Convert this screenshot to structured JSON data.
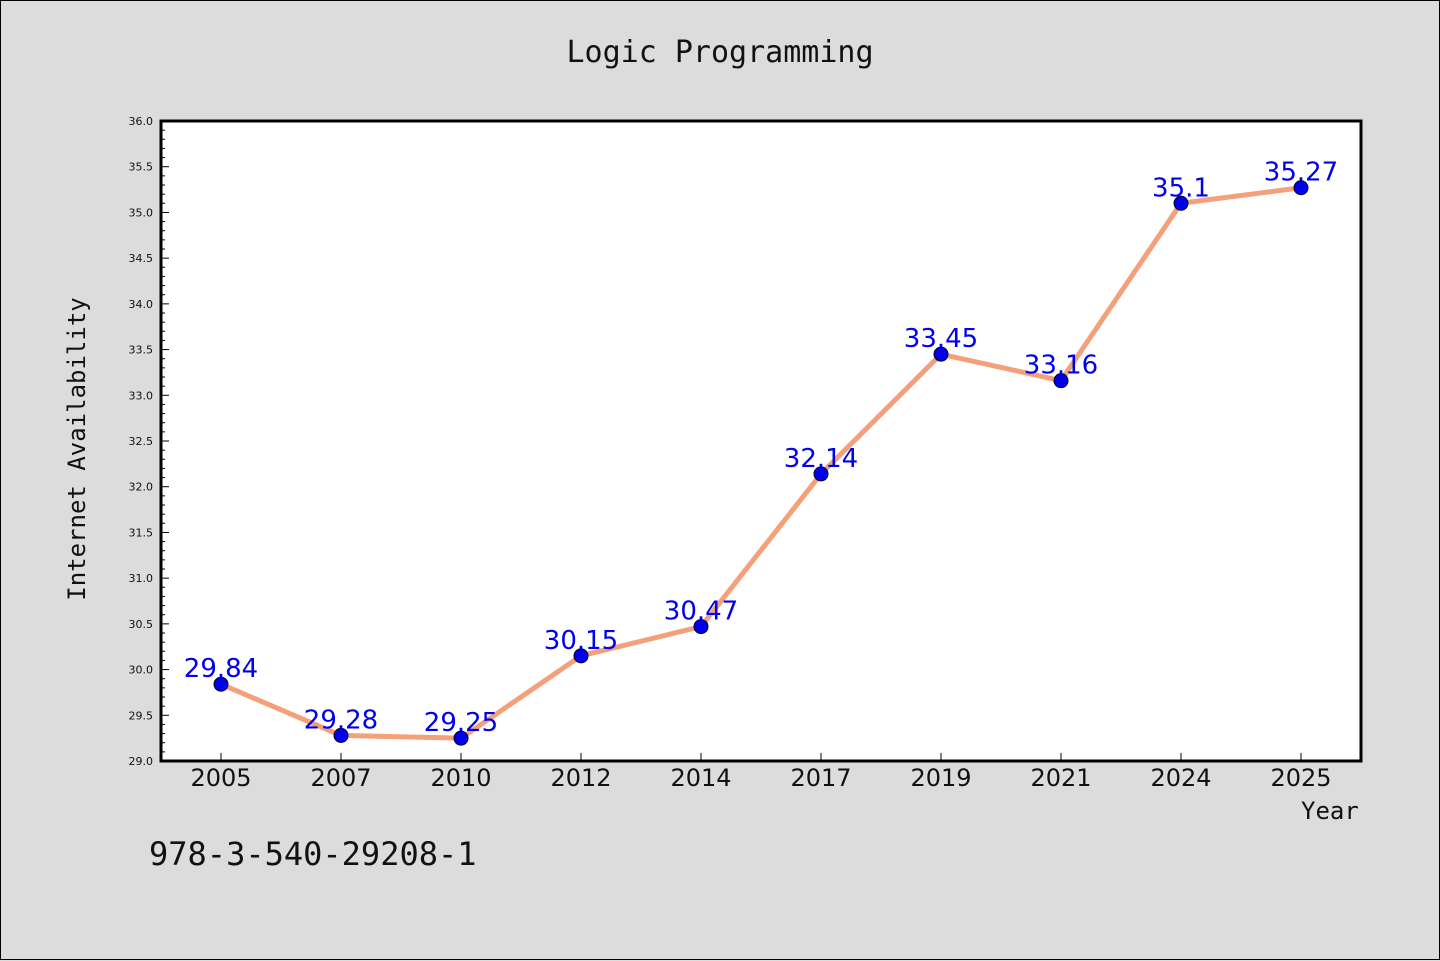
{
  "chart_data": {
    "type": "line",
    "title": "Logic Programming",
    "xlabel": "Year",
    "ylabel": "Internet Availability",
    "categories": [
      "2005",
      "2007",
      "2010",
      "2012",
      "2014",
      "2017",
      "2019",
      "2021",
      "2024",
      "2025"
    ],
    "series": [
      {
        "values": [
          29.84,
          29.28,
          29.25,
          30.15,
          30.47,
          32.14,
          33.45,
          33.16,
          35.1,
          35.27
        ],
        "labels": [
          "29.84",
          "29.28",
          "29.25",
          "30.15",
          "30.47",
          "32.14",
          "33.45",
          "33.16",
          "35.1",
          "35.27"
        ],
        "line_color": "#f4a07a",
        "marker_color": "#0000ee"
      }
    ],
    "ylim": [
      29.0,
      36.0
    ],
    "yticks": [
      "29.0",
      "29.5",
      "30.0",
      "30.5",
      "31.0",
      "31.5",
      "32.0",
      "32.5",
      "33.0",
      "33.5",
      "34.0",
      "34.5",
      "35.0",
      "35.5",
      "36.0"
    ],
    "grid": false,
    "legend": "none"
  },
  "footer_text": "978-3-540-29208-1",
  "colors": {
    "background": "#dcdcdc",
    "plot_background": "#ffffff",
    "label": "#0000ee"
  }
}
